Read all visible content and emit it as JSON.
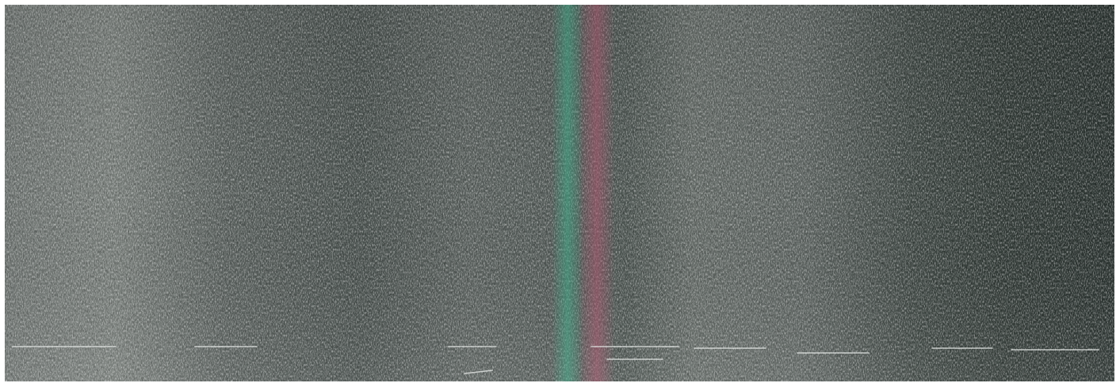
{
  "image": {
    "kind": "scanned-texture",
    "base_color": "#4a514e",
    "light_tone": "#7d847f",
    "dark_tone": "#2f3734",
    "streak_colors": [
      "#3fae8a",
      "#b0566f"
    ],
    "speckle_color": "#e6e9e7"
  }
}
